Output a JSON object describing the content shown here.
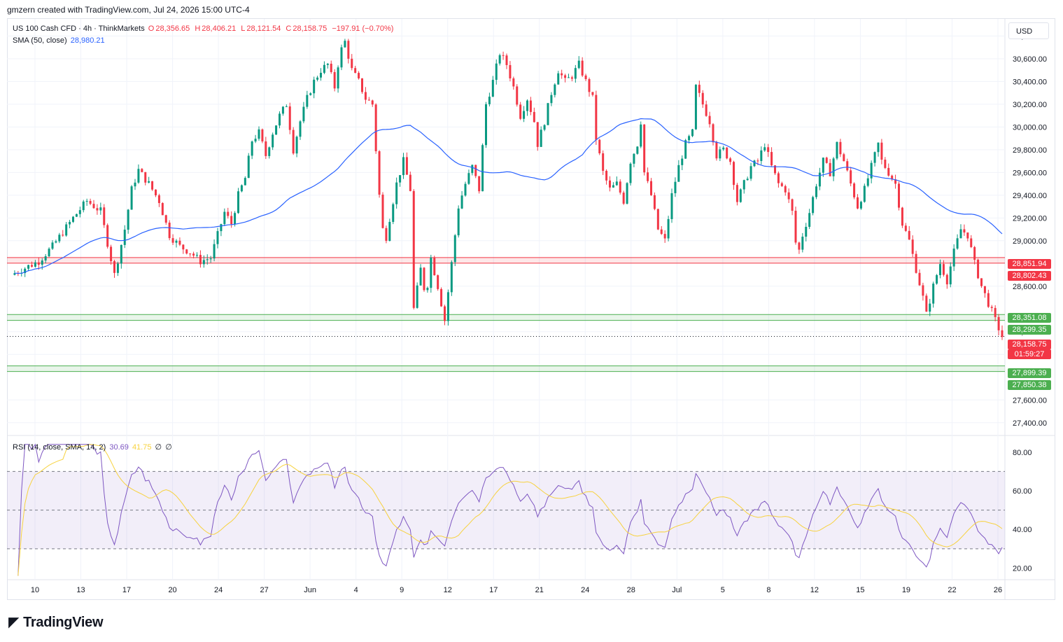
{
  "header": {
    "text": "gmzern created with TradingView.com, Jul 24, 2026 15:00 UTC-4"
  },
  "legend": {
    "symbol": "US 100 Cash CFD · 4h · ThinkMarkets",
    "o_label": "O",
    "o_value": "28,356.65",
    "h_label": "H",
    "h_value": "28,406.21",
    "l_label": "L",
    "l_value": "28,121.54",
    "c_label": "C",
    "c_value": "28,158.75",
    "change": "−197.91 (−0.70%)",
    "sma_label": "SMA (50, close)",
    "sma_value": "28,980.21",
    "rsi_label": "RSI (14, close, SMA, 14, 2)",
    "rsi_value": "30.69",
    "rsi_ma_value": "41.75",
    "rsi_extra1": "∅",
    "rsi_extra2": "∅"
  },
  "currency": "USD",
  "tags": {
    "resistance_top": "28,851.94",
    "resistance_bottom": "28,802.43",
    "support1_top": "28,351.08",
    "support1_bottom": "28,299.35",
    "price": "28,158.75",
    "countdown": "01:59:27",
    "support2_top": "27,899.39",
    "support2_bottom": "27,850.38"
  },
  "colors": {
    "up": "#089981",
    "down": "#f23645",
    "sma": "#2962ff",
    "rsi": "#7e57c2",
    "rsi_ma": "#f7d23f",
    "resistance": "#f23645",
    "support": "#4caf50"
  },
  "brand": "TradingView",
  "chart_data": {
    "type": "candlestick",
    "interval": "4h",
    "price_axis": {
      "ticks": [
        "30,800.00",
        "30,600.00",
        "30,400.00",
        "30,200.00",
        "30,000.00",
        "29,800.00",
        "29,600.00",
        "29,400.00",
        "29,200.00",
        "29,000.00",
        "28,600.00",
        "28,200.00",
        "28,000.00",
        "27,600.00",
        "27,400.00"
      ],
      "range": [
        27300,
        30950
      ]
    },
    "time_axis": [
      "10",
      "13",
      "17",
      "20",
      "24",
      "27",
      "Jun",
      "4",
      "9",
      "12",
      "17",
      "21",
      "24",
      "28",
      "Jul",
      "5",
      "8",
      "12",
      "15",
      "19",
      "22",
      "26"
    ],
    "levels": {
      "resistance": [
        28802.43,
        28851.94
      ],
      "support1": [
        28299.35,
        28351.08
      ],
      "support2": [
        27850.38,
        27899.39
      ],
      "last_price": 28158.75
    },
    "close_path": [
      [
        0,
        28700
      ],
      [
        8,
        28820
      ],
      [
        12,
        28950
      ],
      [
        18,
        29200
      ],
      [
        22,
        29350
      ],
      [
        26,
        29260
      ],
      [
        30,
        28700
      ],
      [
        33,
        29100
      ],
      [
        35,
        29450
      ],
      [
        37,
        29620
      ],
      [
        40,
        29500
      ],
      [
        43,
        29350
      ],
      [
        46,
        29050
      ],
      [
        49,
        28950
      ],
      [
        52,
        28900
      ],
      [
        55,
        28820
      ],
      [
        58,
        28850
      ],
      [
        60,
        29050
      ],
      [
        62,
        29250
      ],
      [
        64,
        29150
      ],
      [
        66,
        29400
      ],
      [
        68,
        29550
      ],
      [
        70,
        29880
      ],
      [
        72,
        29950
      ],
      [
        74,
        29750
      ],
      [
        76,
        29950
      ],
      [
        78,
        30100
      ],
      [
        80,
        30200
      ],
      [
        82,
        29800
      ],
      [
        84,
        30050
      ],
      [
        86,
        30250
      ],
      [
        88,
        30400
      ],
      [
        90,
        30500
      ],
      [
        92,
        30550
      ],
      [
        94,
        30350
      ],
      [
        95.5,
        30650
      ],
      [
        97,
        30750
      ],
      [
        99,
        30500
      ],
      [
        101,
        30400
      ],
      [
        103,
        30250
      ],
      [
        105,
        30200
      ],
      [
        107,
        29400
      ],
      [
        108.5,
        28950
      ],
      [
        110,
        29200
      ],
      [
        112,
        29500
      ],
      [
        114,
        29700
      ],
      [
        116,
        29450
      ],
      [
        117,
        28400
      ],
      [
        119,
        28750
      ],
      [
        120.5,
        28500
      ],
      [
        122,
        28850
      ],
      [
        124,
        28600
      ],
      [
        126,
        28300
      ],
      [
        128,
        28800
      ],
      [
        130,
        29300
      ],
      [
        132,
        29500
      ],
      [
        134,
        29650
      ],
      [
        136,
        29450
      ],
      [
        138,
        30200
      ],
      [
        140,
        30400
      ],
      [
        142,
        30650
      ],
      [
        144,
        30550
      ],
      [
        146,
        30350
      ],
      [
        148,
        30100
      ],
      [
        150,
        30250
      ],
      [
        152,
        30050
      ],
      [
        153,
        29850
      ],
      [
        155,
        30050
      ],
      [
        157,
        30300
      ],
      [
        159,
        30500
      ],
      [
        161,
        30400
      ],
      [
        163,
        30450
      ],
      [
        165,
        30550
      ],
      [
        167,
        30400
      ],
      [
        169,
        30250
      ],
      [
        170,
        29900
      ],
      [
        172,
        29600
      ],
      [
        174,
        29450
      ],
      [
        176,
        29500
      ],
      [
        178,
        29350
      ],
      [
        180,
        29700
      ],
      [
        182,
        29850
      ],
      [
        183,
        30050
      ],
      [
        184,
        29600
      ],
      [
        186,
        29400
      ],
      [
        188,
        29100
      ],
      [
        190,
        29000
      ],
      [
        192,
        29400
      ],
      [
        194,
        29650
      ],
      [
        196,
        29850
      ],
      [
        198,
        29950
      ],
      [
        199,
        30350
      ],
      [
        201,
        30200
      ],
      [
        203,
        30050
      ],
      [
        205,
        29750
      ],
      [
        207,
        29800
      ],
      [
        209,
        29700
      ],
      [
        211,
        29350
      ],
      [
        213,
        29500
      ],
      [
        215,
        29650
      ],
      [
        217,
        29700
      ],
      [
        219,
        29850
      ],
      [
        221,
        29650
      ],
      [
        223,
        29500
      ],
      [
        225,
        29450
      ],
      [
        227,
        29250
      ],
      [
        228.5,
        28850
      ],
      [
        230,
        29050
      ],
      [
        232,
        29250
      ],
      [
        234,
        29500
      ],
      [
        236,
        29700
      ],
      [
        238,
        29600
      ],
      [
        240,
        29850
      ],
      [
        242,
        29700
      ],
      [
        244,
        29500
      ],
      [
        246,
        29300
      ],
      [
        248,
        29450
      ],
      [
        250,
        29650
      ],
      [
        252,
        29850
      ],
      [
        253,
        29700
      ],
      [
        255,
        29600
      ],
      [
        257,
        29500
      ],
      [
        259,
        29150
      ],
      [
        261,
        29000
      ],
      [
        263,
        28750
      ],
      [
        265,
        28500
      ],
      [
        266,
        28350
      ],
      [
        268,
        28600
      ],
      [
        270,
        28800
      ],
      [
        272,
        28650
      ],
      [
        274,
        28900
      ],
      [
        276,
        29100
      ],
      [
        278,
        29050
      ],
      [
        280,
        28800
      ],
      [
        282,
        28600
      ],
      [
        284,
        28450
      ],
      [
        286,
        28300
      ],
      [
        288,
        28158.75
      ]
    ],
    "rsi": {
      "name": "RSI (14, close, SMA, 14, 2)",
      "last": 30.69,
      "ma_last": 41.75,
      "bands": [
        70,
        50,
        30
      ],
      "ticks": [
        "80.00",
        "60.00",
        "40.00",
        "20.00"
      ],
      "range": [
        14,
        85
      ]
    }
  }
}
